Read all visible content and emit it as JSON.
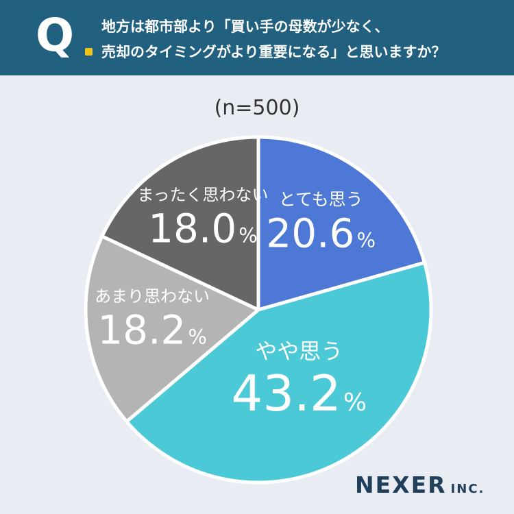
{
  "question": {
    "mark": "Q",
    "line1": "地方は都市部より「買い手の母数が少なく、",
    "line2": "売却のタイミングがより重要になる」と思いますか？"
  },
  "sample": "(n=500)",
  "brand": {
    "main": "NEXER",
    "sub": "INC."
  },
  "chart_data": {
    "type": "pie",
    "start": "12 o'clock, clockwise",
    "slices": [
      {
        "label": "とても思う",
        "value": 20.6,
        "value_text": "20.6",
        "unit": "%",
        "color": "#4e78d6",
        "text_color": "#ffffff"
      },
      {
        "label": "やや思う",
        "value": 43.2,
        "value_text": "43.2",
        "unit": "%",
        "color": "#4bc9d6",
        "text_color": "#ffffff"
      },
      {
        "label": "あまり思わない",
        "value": 18.2,
        "value_text": "18.2",
        "unit": "%",
        "color": "#b4b4b4",
        "text_color": "#ffffff"
      },
      {
        "label": "まったく思わない",
        "value": 18.0,
        "value_text": "18.0",
        "unit": "%",
        "color": "#666666",
        "text_color": "#ffffff"
      }
    ]
  }
}
